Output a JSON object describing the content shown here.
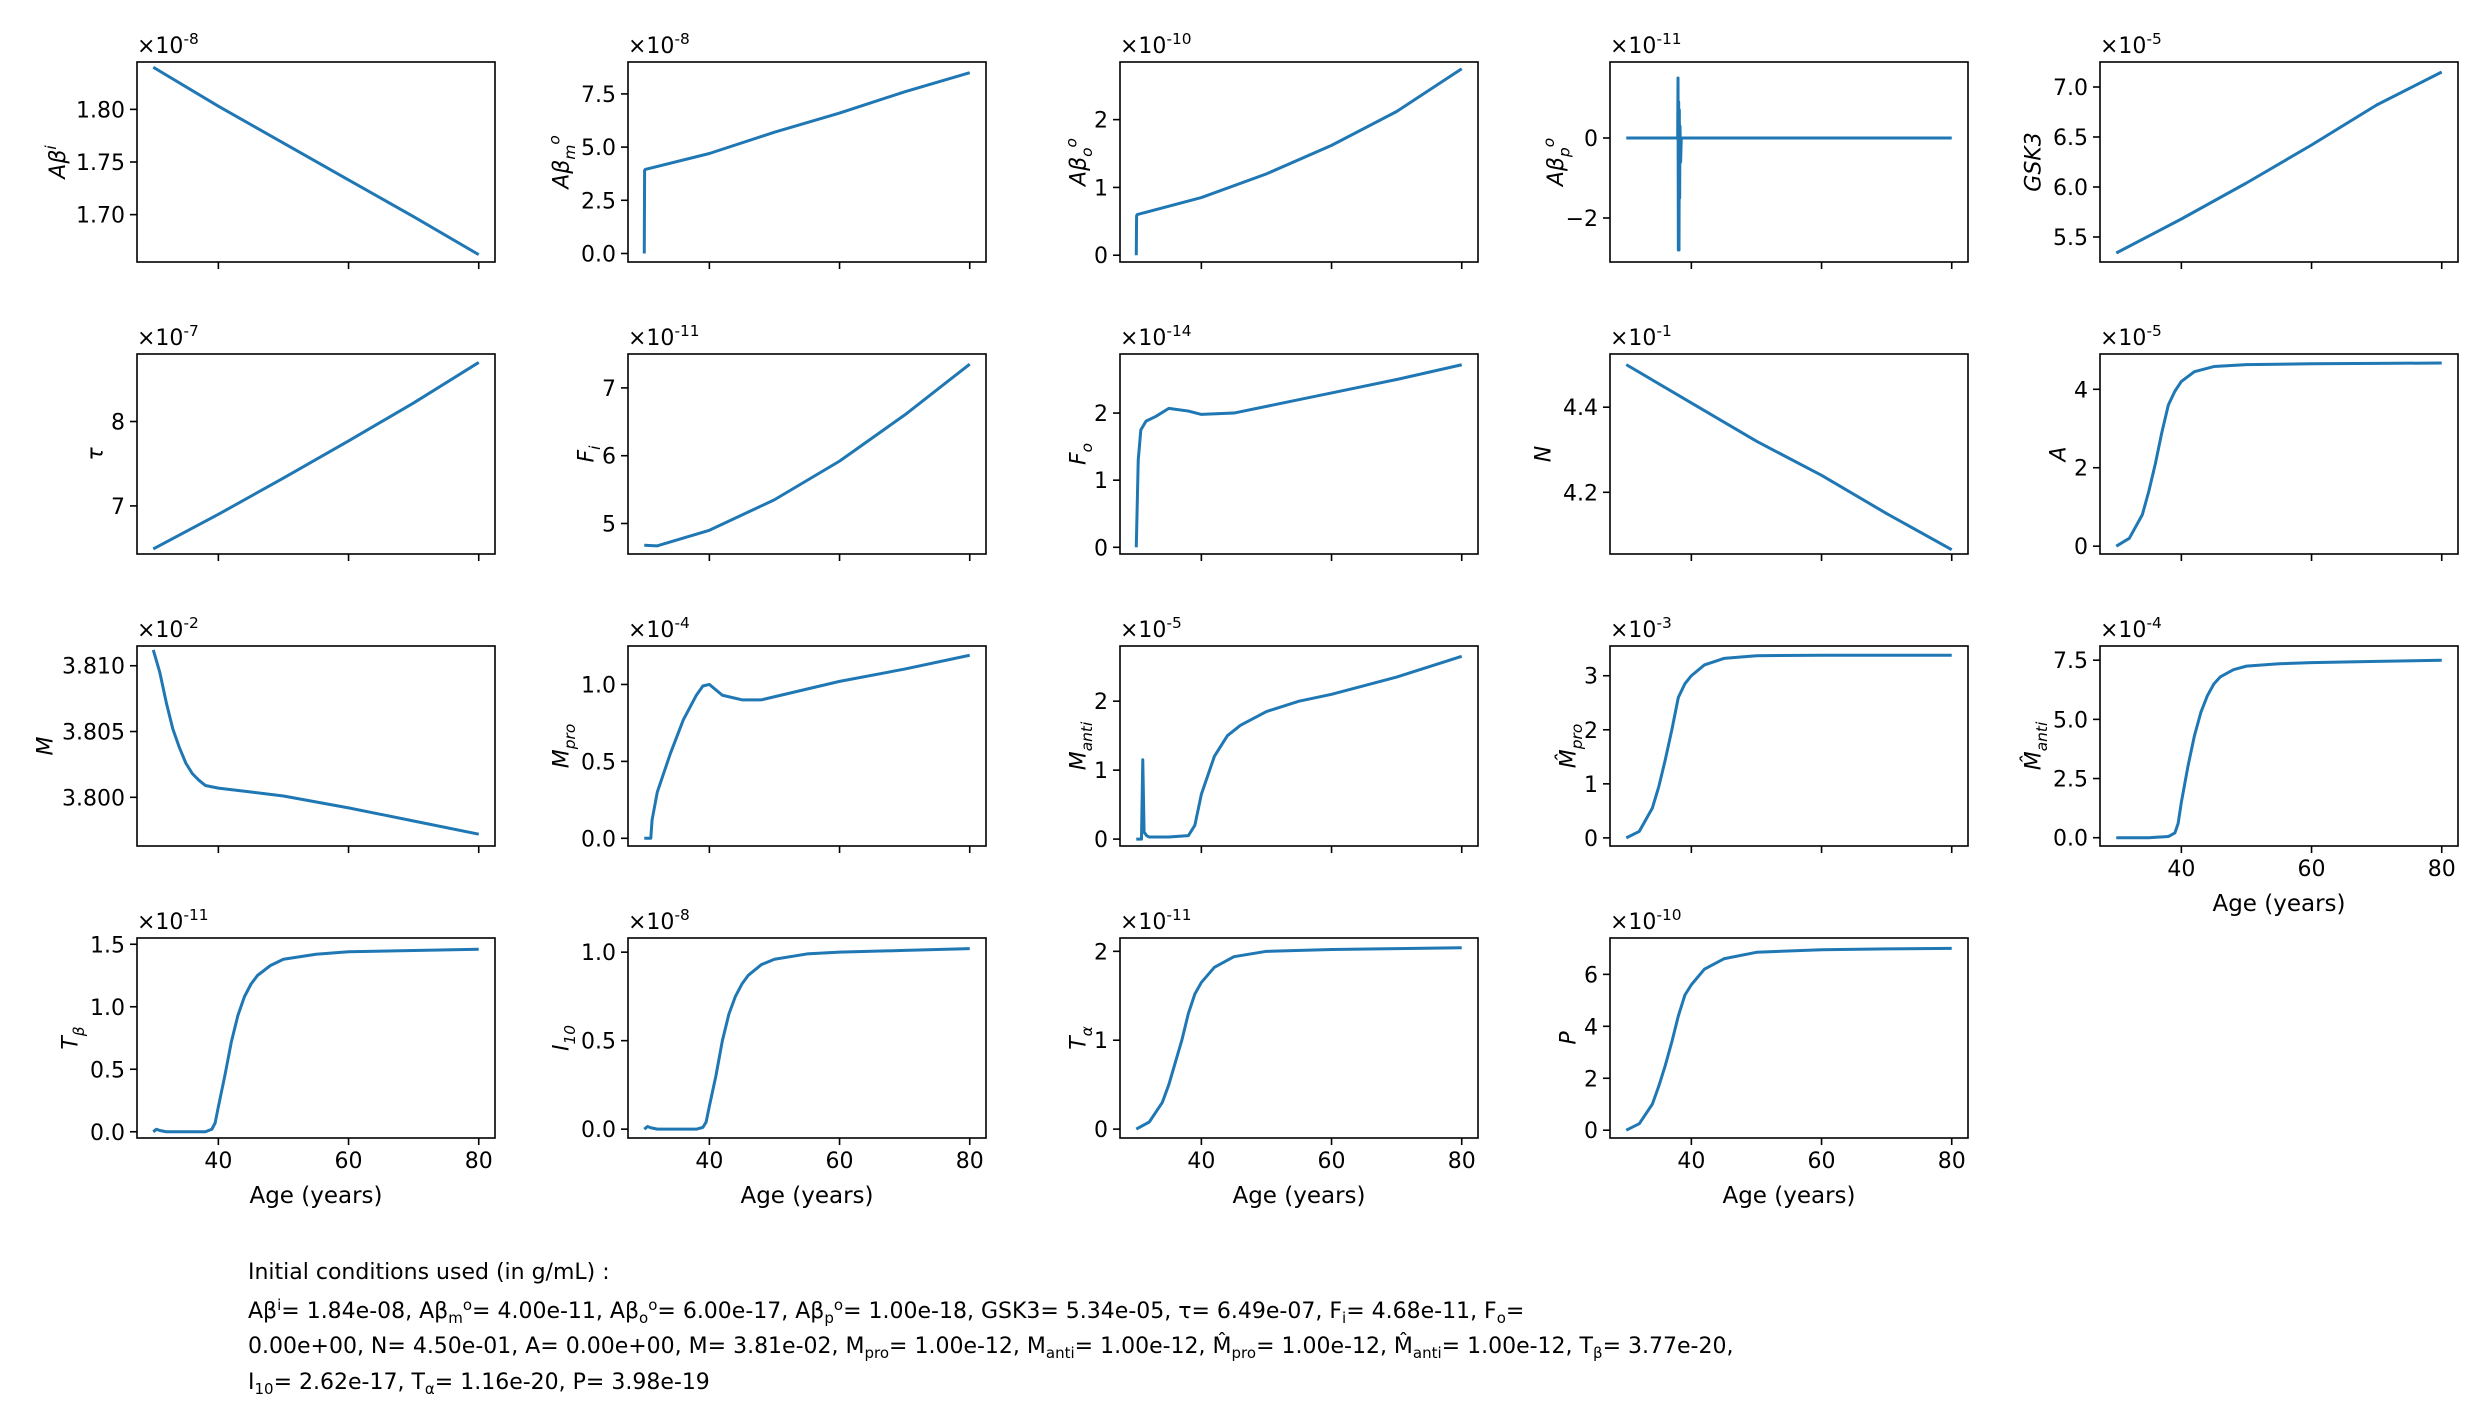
{
  "chart_data": [
    {
      "type": "line",
      "ylabel": "Aβ^i",
      "exponent": "×10^{-8}",
      "yticks": [
        1.7,
        1.75,
        1.8
      ],
      "ytick_labels": [
        "1.70",
        "1.75",
        "1.80"
      ],
      "ylim": [
        1.655,
        1.845
      ],
      "xlim": [
        27.5,
        82.5
      ],
      "xticks": [
        40,
        60,
        80
      ],
      "xtick_labels": [],
      "xlabel": "",
      "series": [
        {
          "x": [
            30,
            40,
            50,
            60,
            70,
            80
          ],
          "y": [
            1.84,
            1.803,
            1.768,
            1.733,
            1.698,
            1.662
          ]
        }
      ]
    },
    {
      "type": "line",
      "ylabel": "Aβ_m^o",
      "exponent": "×10^{-8}",
      "yticks": [
        0,
        2.5,
        5.0,
        7.5
      ],
      "ytick_labels": [
        "0.0",
        "2.5",
        "5.0",
        "7.5"
      ],
      "ylim": [
        -0.4,
        9.0
      ],
      "xlim": [
        27.5,
        82.5
      ],
      "xticks": [
        40,
        60,
        80
      ],
      "xtick_labels": [],
      "xlabel": "",
      "series": [
        {
          "x": [
            30,
            30.05,
            30.15,
            40,
            50,
            60,
            70,
            80
          ],
          "y": [
            0,
            3.9,
            3.95,
            4.7,
            5.7,
            6.6,
            7.6,
            8.5
          ]
        }
      ]
    },
    {
      "type": "line",
      "ylabel": "Aβ_o^o",
      "exponent": "×10^{-10}",
      "yticks": [
        0,
        1,
        2
      ],
      "ytick_labels": [
        "0",
        "1",
        "2"
      ],
      "ylim": [
        -0.1,
        2.85
      ],
      "xlim": [
        27.5,
        82.5
      ],
      "xticks": [
        40,
        60,
        80
      ],
      "xtick_labels": [],
      "xlabel": "",
      "series": [
        {
          "x": [
            30,
            30.05,
            30.15,
            40,
            50,
            60,
            70,
            80
          ],
          "y": [
            0,
            0.58,
            0.6,
            0.85,
            1.2,
            1.62,
            2.12,
            2.75
          ]
        }
      ]
    },
    {
      "type": "line",
      "ylabel": "Aβ_p^o",
      "exponent": "×10^{-11}",
      "yticks": [
        -2,
        0
      ],
      "ytick_labels": [
        "−2",
        "0"
      ],
      "ylim": [
        -3.1,
        1.9
      ],
      "xlim": [
        27.5,
        82.5
      ],
      "xticks": [
        40,
        60,
        80
      ],
      "xtick_labels": [],
      "xlabel": "",
      "series": [
        {
          "x": [
            30,
            37.9,
            37.95,
            38.0,
            38.05,
            38.1,
            38.15,
            38.2,
            38.25,
            38.35,
            38.45,
            80
          ],
          "y": [
            0,
            0,
            1.5,
            -2.8,
            0.9,
            -2.8,
            0.7,
            -1.5,
            0.3,
            -0.6,
            0,
            0
          ]
        }
      ]
    },
    {
      "type": "line",
      "ylabel": "GSK3",
      "exponent": "×10^{-5}",
      "yticks": [
        5.5,
        6.0,
        6.5,
        7.0
      ],
      "ytick_labels": [
        "5.5",
        "6.0",
        "6.5",
        "7.0"
      ],
      "ylim": [
        5.25,
        7.25
      ],
      "xlim": [
        27.5,
        82.5
      ],
      "xticks": [
        40,
        60,
        80
      ],
      "xtick_labels": [],
      "xlabel": "",
      "series": [
        {
          "x": [
            30,
            40,
            50,
            60,
            70,
            80
          ],
          "y": [
            5.34,
            5.68,
            6.04,
            6.42,
            6.82,
            7.15
          ]
        }
      ]
    },
    {
      "type": "line",
      "ylabel": "τ",
      "exponent": "×10^{-7}",
      "yticks": [
        7,
        8
      ],
      "ytick_labels": [
        "7",
        "8"
      ],
      "ylim": [
        6.43,
        8.8
      ],
      "xlim": [
        27.5,
        82.5
      ],
      "xticks": [
        40,
        60,
        80
      ],
      "xtick_labels": [],
      "xlabel": "",
      "series": [
        {
          "x": [
            30,
            40,
            50,
            60,
            70,
            80
          ],
          "y": [
            6.49,
            6.9,
            7.33,
            7.77,
            8.22,
            8.7
          ]
        }
      ]
    },
    {
      "type": "line",
      "ylabel": "F_i",
      "exponent": "×10^{-11}",
      "yticks": [
        5,
        6,
        7
      ],
      "ytick_labels": [
        "5",
        "6",
        "7"
      ],
      "ylim": [
        4.55,
        7.5
      ],
      "xlim": [
        27.5,
        82.5
      ],
      "xticks": [
        40,
        60,
        80
      ],
      "xtick_labels": [],
      "xlabel": "",
      "series": [
        {
          "x": [
            30,
            32,
            40,
            50,
            60,
            70,
            80
          ],
          "y": [
            4.68,
            4.67,
            4.9,
            5.35,
            5.92,
            6.6,
            7.35
          ]
        }
      ]
    },
    {
      "type": "line",
      "ylabel": "F_o",
      "exponent": "×10^{-14}",
      "yticks": [
        0,
        1,
        2
      ],
      "ytick_labels": [
        "0",
        "1",
        "2"
      ],
      "ylim": [
        -0.1,
        2.88
      ],
      "xlim": [
        27.5,
        82.5
      ],
      "xticks": [
        40,
        60,
        80
      ],
      "xtick_labels": [],
      "xlabel": "",
      "series": [
        {
          "x": [
            30,
            30.3,
            30.7,
            31.5,
            33,
            35,
            38,
            40,
            45,
            50,
            60,
            70,
            80
          ],
          "y": [
            0,
            1.3,
            1.75,
            1.88,
            1.95,
            2.07,
            2.03,
            1.98,
            2.0,
            2.1,
            2.3,
            2.5,
            2.72
          ]
        }
      ]
    },
    {
      "type": "line",
      "ylabel": "N",
      "exponent": "×10^{-1}",
      "yticks": [
        4.2,
        4.4
      ],
      "ytick_labels": [
        "4.2",
        "4.4"
      ],
      "ylim": [
        4.055,
        4.525
      ],
      "xlim": [
        27.5,
        82.5
      ],
      "xticks": [
        40,
        60,
        80
      ],
      "xtick_labels": [],
      "xlabel": "",
      "series": [
        {
          "x": [
            30,
            40,
            50,
            60,
            70,
            80
          ],
          "y": [
            4.5,
            4.41,
            4.32,
            4.24,
            4.15,
            4.065
          ]
        }
      ]
    },
    {
      "type": "line",
      "ylabel": "A",
      "exponent": "×10^{-5}",
      "yticks": [
        0,
        2,
        4
      ],
      "ytick_labels": [
        "0",
        "2",
        "4"
      ],
      "ylim": [
        -0.2,
        4.9
      ],
      "xlim": [
        27.5,
        82.5
      ],
      "xticks": [
        40,
        60,
        80
      ],
      "xtick_labels": [],
      "xlabel": "",
      "series": [
        {
          "x": [
            30,
            32,
            34,
            35,
            36,
            37,
            38,
            39,
            40,
            42,
            45,
            50,
            60,
            70,
            80
          ],
          "y": [
            0,
            0.2,
            0.8,
            1.4,
            2.1,
            2.9,
            3.6,
            3.95,
            4.2,
            4.45,
            4.58,
            4.63,
            4.65,
            4.66,
            4.67
          ]
        }
      ]
    },
    {
      "type": "line",
      "ylabel": "M",
      "exponent": "×10^{-2}",
      "yticks": [
        3.8,
        3.805,
        3.81
      ],
      "ytick_labels": [
        "3.800",
        "3.805",
        "3.810"
      ],
      "ylim": [
        3.7963,
        3.8115
      ],
      "xlim": [
        27.5,
        82.5
      ],
      "xticks": [
        40,
        60,
        80
      ],
      "xtick_labels": [],
      "xlabel": "",
      "series": [
        {
          "x": [
            30,
            31,
            32,
            33,
            34,
            35,
            36,
            37,
            38,
            40,
            45,
            50,
            60,
            70,
            80
          ],
          "y": [
            3.8112,
            3.8095,
            3.8072,
            3.8052,
            3.8038,
            3.8026,
            3.8018,
            3.8013,
            3.8009,
            3.8007,
            3.8004,
            3.8001,
            3.7992,
            3.7982,
            3.7972
          ]
        }
      ]
    },
    {
      "type": "line",
      "ylabel": "M_pro",
      "exponent": "×10^{-4}",
      "yticks": [
        0,
        0.5,
        1.0
      ],
      "ytick_labels": [
        "0.0",
        "0.5",
        "1.0"
      ],
      "ylim": [
        -0.05,
        1.25
      ],
      "xlim": [
        27.5,
        82.5
      ],
      "xticks": [
        40,
        60,
        80
      ],
      "xtick_labels": [],
      "xlabel": "",
      "series": [
        {
          "x": [
            30,
            31,
            31.2,
            32,
            34,
            36,
            38,
            39,
            40,
            42,
            45,
            48,
            50,
            60,
            70,
            80
          ],
          "y": [
            0,
            0,
            0.12,
            0.3,
            0.55,
            0.77,
            0.93,
            0.99,
            1.0,
            0.93,
            0.9,
            0.9,
            0.92,
            1.02,
            1.1,
            1.19
          ]
        }
      ]
    },
    {
      "type": "line",
      "ylabel": "M_anti",
      "exponent": "×10^{-5}",
      "yticks": [
        0,
        1,
        2
      ],
      "ytick_labels": [
        "0",
        "1",
        "2"
      ],
      "ylim": [
        -0.1,
        2.8
      ],
      "xlim": [
        27.5,
        82.5
      ],
      "xticks": [
        40,
        60,
        80
      ],
      "xtick_labels": [],
      "xlabel": "",
      "series": [
        {
          "x": [
            30,
            30.8,
            31.0,
            31.2,
            31.6,
            32,
            35,
            38,
            39,
            40,
            42,
            44,
            46,
            50,
            55,
            60,
            70,
            80
          ],
          "y": [
            0,
            0,
            1.15,
            0.1,
            0.05,
            0.03,
            0.03,
            0.05,
            0.2,
            0.65,
            1.2,
            1.5,
            1.65,
            1.85,
            2.0,
            2.1,
            2.35,
            2.65
          ]
        }
      ]
    },
    {
      "type": "line",
      "ylabel": "M̂_pro",
      "exponent": "×10^{-3}",
      "yticks": [
        0,
        1,
        2,
        3
      ],
      "ytick_labels": [
        "0",
        "1",
        "2",
        "3"
      ],
      "ylim": [
        -0.15,
        3.55
      ],
      "xlim": [
        27.5,
        82.5
      ],
      "xticks": [
        40,
        60,
        80
      ],
      "xtick_labels": [],
      "xlabel": "",
      "series": [
        {
          "x": [
            30,
            32,
            34,
            35,
            36,
            37,
            38,
            39,
            40,
            42,
            45,
            50,
            60,
            70,
            80
          ],
          "y": [
            0,
            0.12,
            0.55,
            0.95,
            1.45,
            2.0,
            2.6,
            2.85,
            3.0,
            3.2,
            3.32,
            3.37,
            3.38,
            3.38,
            3.38
          ]
        }
      ]
    },
    {
      "type": "line",
      "ylabel": "M̂_anti",
      "exponent": "×10^{-4}",
      "yticks": [
        0,
        2.5,
        5.0,
        7.5
      ],
      "ytick_labels": [
        "0.0",
        "2.5",
        "5.0",
        "7.5"
      ],
      "ylim": [
        -0.35,
        8.1
      ],
      "xlim": [
        27.5,
        82.5
      ],
      "xticks": [
        40,
        60,
        80
      ],
      "xtick_labels": [
        "40",
        "60",
        "80"
      ],
      "xlabel": "Age (years)",
      "series": [
        {
          "x": [
            30,
            35,
            38,
            39,
            39.5,
            40,
            41,
            42,
            43,
            44,
            45,
            46,
            48,
            50,
            55,
            60,
            70,
            80
          ],
          "y": [
            0,
            0,
            0.05,
            0.2,
            0.6,
            1.5,
            3.0,
            4.3,
            5.3,
            6.0,
            6.5,
            6.8,
            7.1,
            7.25,
            7.35,
            7.4,
            7.45,
            7.5
          ]
        }
      ]
    },
    {
      "type": "line",
      "ylabel": "T_β",
      "exponent": "×10^{-11}",
      "yticks": [
        0,
        0.5,
        1.0,
        1.5
      ],
      "ytick_labels": [
        "0.0",
        "0.5",
        "1.0",
        "1.5"
      ],
      "ylim": [
        -0.05,
        1.55
      ],
      "xlim": [
        27.5,
        82.5
      ],
      "xticks": [
        40,
        60,
        80
      ],
      "xtick_labels": [
        "40",
        "60",
        "80"
      ],
      "xlabel": "Age (years)",
      "series": [
        {
          "x": [
            30,
            30.5,
            31,
            32,
            38,
            39,
            39.5,
            40,
            41,
            42,
            43,
            44,
            45,
            46,
            48,
            50,
            55,
            60,
            70,
            80
          ],
          "y": [
            0,
            0.02,
            0.01,
            0,
            0,
            0.02,
            0.07,
            0.2,
            0.45,
            0.72,
            0.93,
            1.08,
            1.18,
            1.25,
            1.33,
            1.38,
            1.42,
            1.44,
            1.45,
            1.46
          ]
        }
      ]
    },
    {
      "type": "line",
      "ylabel": "I_10",
      "exponent": "×10^{-8}",
      "yticks": [
        0,
        0.5,
        1.0
      ],
      "ytick_labels": [
        "0.0",
        "0.5",
        "1.0"
      ],
      "ylim": [
        -0.05,
        1.08
      ],
      "xlim": [
        27.5,
        82.5
      ],
      "xticks": [
        40,
        60,
        80
      ],
      "xtick_labels": [
        "40",
        "60",
        "80"
      ],
      "xlabel": "Age (years)",
      "series": [
        {
          "x": [
            30,
            30.5,
            31,
            32,
            38,
            39,
            39.5,
            40,
            41,
            42,
            43,
            44,
            45,
            46,
            48,
            50,
            55,
            60,
            70,
            80
          ],
          "y": [
            0,
            0.015,
            0.008,
            0,
            0,
            0.01,
            0.04,
            0.13,
            0.3,
            0.5,
            0.65,
            0.75,
            0.82,
            0.87,
            0.93,
            0.96,
            0.99,
            1.0,
            1.01,
            1.02
          ]
        }
      ]
    },
    {
      "type": "line",
      "ylabel": "T_α",
      "exponent": "×10^{-11}",
      "yticks": [
        0,
        1,
        2
      ],
      "ytick_labels": [
        "0",
        "1",
        "2"
      ],
      "ylim": [
        -0.1,
        2.15
      ],
      "xlim": [
        27.5,
        82.5
      ],
      "xticks": [
        40,
        60,
        80
      ],
      "xtick_labels": [
        "40",
        "60",
        "80"
      ],
      "xlabel": "Age (years)",
      "series": [
        {
          "x": [
            30,
            32,
            34,
            35,
            36,
            37,
            38,
            39,
            40,
            42,
            45,
            50,
            60,
            70,
            80
          ],
          "y": [
            0,
            0.08,
            0.3,
            0.5,
            0.75,
            1.0,
            1.3,
            1.52,
            1.65,
            1.82,
            1.94,
            2.0,
            2.02,
            2.03,
            2.04
          ]
        }
      ]
    },
    {
      "type": "line",
      "ylabel": "P",
      "exponent": "×10^{-10}",
      "yticks": [
        0,
        2,
        4,
        6
      ],
      "ytick_labels": [
        "0",
        "2",
        "4",
        "6"
      ],
      "ylim": [
        -0.3,
        7.4
      ],
      "xlim": [
        27.5,
        82.5
      ],
      "xticks": [
        40,
        60,
        80
      ],
      "xtick_labels": [
        "40",
        "60",
        "80"
      ],
      "xlabel": "Age (years)",
      "series": [
        {
          "x": [
            30,
            32,
            34,
            35,
            36,
            37,
            38,
            39,
            40,
            42,
            45,
            50,
            60,
            70,
            80
          ],
          "y": [
            0,
            0.25,
            1.0,
            1.7,
            2.5,
            3.4,
            4.4,
            5.2,
            5.6,
            6.2,
            6.6,
            6.85,
            6.95,
            6.98,
            7.0
          ]
        }
      ]
    }
  ],
  "caption": {
    "line1": "Initial conditions used (in g/mL) :",
    "line2": "Aβ^i= 1.84e-08, Aβ_m^o= 4.00e-11, Aβ_o^o= 6.00e-17, Aβ_p^o= 1.00e-18, GSK3= 5.34e-05, τ= 6.49e-07, F_i= 4.68e-11, F_o=",
    "line3": "0.00e+00, N= 4.50e-01, A= 0.00e+00, M= 3.81e-02, M_pro= 1.00e-12, M_anti= 1.00e-12, M̂_pro= 1.00e-12, M̂_anti= 1.00e-12, T_β= 3.77e-20,",
    "line4": "I_10= 2.62e-17, T_α= 1.16e-20, P= 3.98e-19"
  },
  "colors": {
    "line": "#1f77b4",
    "axis": "#000000",
    "background": "#ffffff"
  }
}
